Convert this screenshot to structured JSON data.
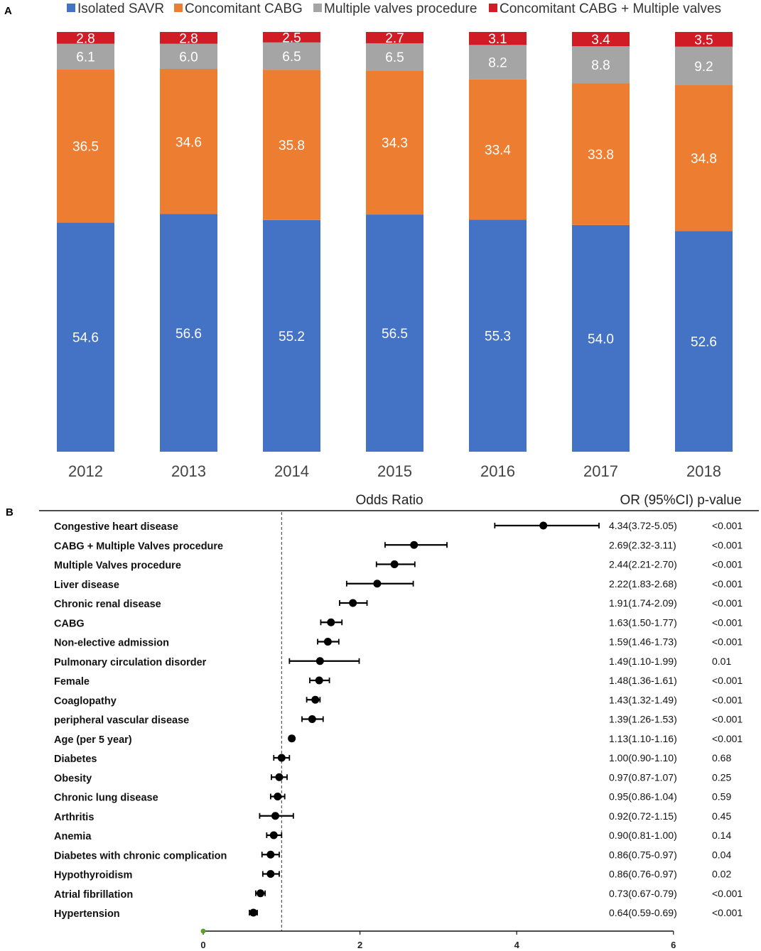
{
  "chart_data": [
    {
      "type": "bar",
      "stacked": true,
      "panel_label": "A",
      "categories": [
        "2012",
        "2013",
        "2014",
        "2015",
        "2016",
        "2017",
        "2018"
      ],
      "series": [
        {
          "name": "Isolated SAVR",
          "color": "#4472c4",
          "values": [
            54.6,
            56.6,
            55.2,
            56.5,
            55.3,
            54.0,
            52.6
          ],
          "labels": [
            "54.6",
            "56.6",
            "55.2",
            "56.5",
            "55.3",
            "54.0",
            "52.6"
          ]
        },
        {
          "name": "Concomitant CABG",
          "color": "#ed7d31",
          "values": [
            36.5,
            34.6,
            35.8,
            34.3,
            33.4,
            33.8,
            34.8
          ],
          "labels": [
            "36.5",
            "34.6",
            "35.8",
            "34.3",
            "33.4",
            "33.8",
            "34.8"
          ]
        },
        {
          "name": "Multiple valves procedure",
          "color": "#a5a5a5",
          "values": [
            6.1,
            6.0,
            6.5,
            6.5,
            8.2,
            8.8,
            9.2
          ],
          "labels": [
            "6.1",
            "6.0",
            "6.5",
            "6.5",
            "8.2",
            "8.8",
            "9.2"
          ]
        },
        {
          "name": "Concomitant CABG + Multiple valves",
          "color": "#d01c24",
          "values": [
            2.8,
            2.8,
            2.5,
            2.7,
            3.1,
            3.4,
            3.5
          ],
          "labels": [
            "2.8",
            "2.8",
            "2.5",
            "2.7",
            "3.1",
            "3.4",
            "3.5"
          ]
        }
      ],
      "legend_position": "top",
      "ylim": [
        0,
        100
      ]
    },
    {
      "type": "scatter",
      "subtype": "forest",
      "panel_label": "B",
      "title": "Odds Ratio",
      "table_header": "OR (95%CI) p-value",
      "xlim": [
        0,
        6
      ],
      "xticks": [
        "0",
        "2",
        "4",
        "6"
      ],
      "reference_line": 1,
      "rows": [
        {
          "label": "Congestive heart disease",
          "or": 4.34,
          "lo": 3.72,
          "hi": 5.05,
          "ci_text": "4.34(3.72-5.05)",
          "p": "<0.001"
        },
        {
          "label": "CABG + Multiple Valves procedure",
          "or": 2.69,
          "lo": 2.32,
          "hi": 3.11,
          "ci_text": "2.69(2.32-3.11)",
          "p": "<0.001"
        },
        {
          "label": "Multiple Valves procedure",
          "or": 2.44,
          "lo": 2.21,
          "hi": 2.7,
          "ci_text": "2.44(2.21-2.70)",
          "p": "<0.001"
        },
        {
          "label": "Liver disease",
          "or": 2.22,
          "lo": 1.83,
          "hi": 2.68,
          "ci_text": "2.22(1.83-2.68)",
          "p": "<0.001"
        },
        {
          "label": "Chronic renal disease",
          "or": 1.91,
          "lo": 1.74,
          "hi": 2.09,
          "ci_text": "1.91(1.74-2.09)",
          "p": "<0.001"
        },
        {
          "label": "CABG",
          "or": 1.63,
          "lo": 1.5,
          "hi": 1.77,
          "ci_text": "1.63(1.50-1.77)",
          "p": "<0.001"
        },
        {
          "label": "Non-elective admission",
          "or": 1.59,
          "lo": 1.46,
          "hi": 1.73,
          "ci_text": "1.59(1.46-1.73)",
          "p": "<0.001"
        },
        {
          "label": "Pulmonary circulation disorder",
          "or": 1.49,
          "lo": 1.1,
          "hi": 1.99,
          "ci_text": "1.49(1.10-1.99)",
          "p": "0.01"
        },
        {
          "label": "Female",
          "or": 1.48,
          "lo": 1.36,
          "hi": 1.61,
          "ci_text": "1.48(1.36-1.61)",
          "p": "<0.001"
        },
        {
          "label": "Coaglopathy",
          "or": 1.43,
          "lo": 1.32,
          "hi": 1.49,
          "ci_text": "1.43(1.32-1.49)",
          "p": "<0.001"
        },
        {
          "label": "peripheral vascular disease",
          "or": 1.39,
          "lo": 1.26,
          "hi": 1.53,
          "ci_text": "1.39(1.26-1.53)",
          "p": "<0.001"
        },
        {
          "label": "Age (per 5 year)",
          "or": 1.13,
          "lo": 1.1,
          "hi": 1.16,
          "ci_text": "1.13(1.10-1.16)",
          "p": "<0.001"
        },
        {
          "label": "Diabetes",
          "or": 1.0,
          "lo": 0.9,
          "hi": 1.1,
          "ci_text": "1.00(0.90-1.10)",
          "p": "0.68"
        },
        {
          "label": "Obesity",
          "or": 0.97,
          "lo": 0.87,
          "hi": 1.07,
          "ci_text": "0.97(0.87-1.07)",
          "p": "0.25"
        },
        {
          "label": "Chronic lung disease",
          "or": 0.95,
          "lo": 0.86,
          "hi": 1.04,
          "ci_text": "0.95(0.86-1.04)",
          "p": "0.59"
        },
        {
          "label": "Arthritis",
          "or": 0.92,
          "lo": 0.72,
          "hi": 1.15,
          "ci_text": "0.92(0.72-1.15)",
          "p": "0.45"
        },
        {
          "label": "Anemia",
          "or": 0.9,
          "lo": 0.81,
          "hi": 1.0,
          "ci_text": "0.90(0.81-1.00)",
          "p": "0.14"
        },
        {
          "label": "Diabetes with chronic complication",
          "or": 0.86,
          "lo": 0.75,
          "hi": 0.97,
          "ci_text": "0.86(0.75-0.97)",
          "p": "0.04"
        },
        {
          "label": "Hypothyroidism",
          "or": 0.86,
          "lo": 0.76,
          "hi": 0.97,
          "ci_text": "0.86(0.76-0.97)",
          "p": "0.02"
        },
        {
          "label": "Atrial fibrillation",
          "or": 0.73,
          "lo": 0.67,
          "hi": 0.79,
          "ci_text": "0.73(0.67-0.79)",
          "p": "<0.001"
        },
        {
          "label": "Hypertension",
          "or": 0.64,
          "lo": 0.59,
          "hi": 0.69,
          "ci_text": "0.64(0.59-0.69)",
          "p": "<0.001"
        }
      ]
    }
  ]
}
